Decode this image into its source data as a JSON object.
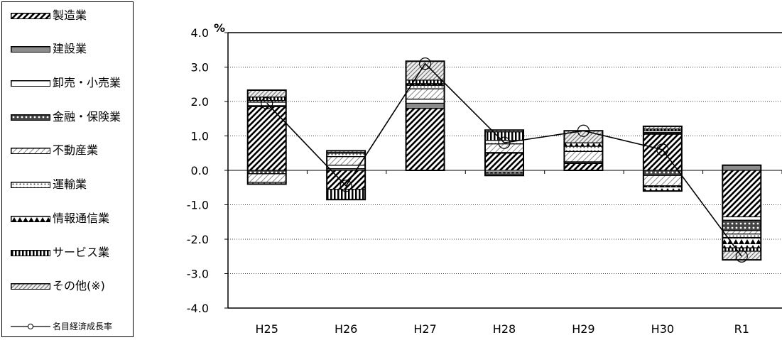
{
  "chart_data": {
    "type": "bar",
    "stacked": true,
    "ylabel": "%",
    "ylim": [
      -4.0,
      4.0
    ],
    "yticks": [
      "4.0",
      "3.0",
      "2.0",
      "1.0",
      "0.0",
      "-1.0",
      "-2.0",
      "-3.0",
      "-4.0"
    ],
    "ytick_values": [
      4,
      3,
      2,
      1,
      0,
      -1,
      -2,
      -3,
      -4
    ],
    "grid": "horizontal-dotted",
    "legend_position": "left",
    "categories": [
      "H25",
      "H26",
      "H27",
      "H28",
      "H29",
      "H30",
      "R1"
    ],
    "series": [
      {
        "name": "製造業",
        "pattern": "diagonal-dense",
        "values": [
          1.85,
          -0.55,
          1.8,
          0.5,
          0.2,
          1.05,
          -1.35
        ]
      },
      {
        "name": "建設業",
        "pattern": "solid-gray",
        "values": [
          0.03,
          0.05,
          0.15,
          0.02,
          0.02,
          0.03,
          0.15
        ]
      },
      {
        "name": "卸売・小売業",
        "pattern": "white",
        "values": [
          0.1,
          0.1,
          0.12,
          -0.05,
          0.03,
          0.02,
          -0.1
        ]
      },
      {
        "name": "金融・保険業",
        "pattern": "dots-black",
        "values": [
          -0.1,
          0.0,
          0.0,
          -0.1,
          0.0,
          -0.15,
          -0.3
        ]
      },
      {
        "name": "不動産業",
        "pattern": "diagonal-light",
        "values": [
          -0.25,
          0.25,
          0.3,
          0.25,
          0.3,
          -0.3,
          -0.1
        ]
      },
      {
        "name": "運輸業",
        "pattern": "dots-light",
        "values": [
          0.05,
          0.1,
          0.1,
          0.1,
          0.15,
          0.05,
          -0.1
        ]
      },
      {
        "name": "情報通信業",
        "pattern": "triangles",
        "values": [
          -0.05,
          0.02,
          0.05,
          0.0,
          0.1,
          -0.15,
          -0.3
        ]
      },
      {
        "name": "サービス業",
        "pattern": "vertical",
        "values": [
          0.1,
          -0.3,
          0.1,
          0.25,
          0.0,
          0.05,
          -0.1
        ]
      },
      {
        "name": "その他(※)",
        "pattern": "diagonal-hatch",
        "values": [
          0.2,
          0.05,
          0.55,
          0.05,
          0.35,
          0.08,
          -0.25
        ]
      }
    ],
    "line": {
      "name": "名目経済成長率",
      "values": [
        1.95,
        -0.45,
        3.1,
        0.8,
        1.15,
        0.6,
        -2.5
      ]
    }
  }
}
